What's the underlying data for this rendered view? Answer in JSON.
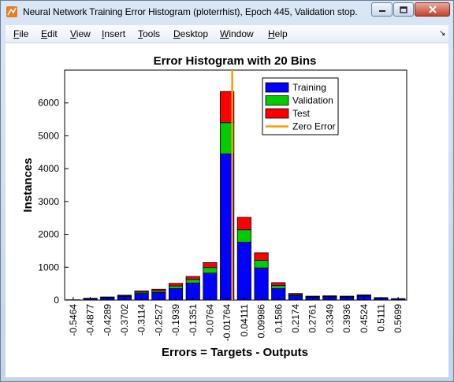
{
  "window": {
    "title": "Neural Network Training Error Histogram (ploterrhist), Epoch 445, Validation stop."
  },
  "menu": {
    "items": [
      {
        "label": "File",
        "key": "F",
        "rest": "ile"
      },
      {
        "label": "Edit",
        "key": "E",
        "rest": "dit"
      },
      {
        "label": "View",
        "key": "V",
        "rest": "iew"
      },
      {
        "label": "Insert",
        "key": "I",
        "rest": "nsert"
      },
      {
        "label": "Tools",
        "key": "T",
        "rest": "ools"
      },
      {
        "label": "Desktop",
        "key": "D",
        "rest": "esktop"
      },
      {
        "label": "Window",
        "key": "W",
        "rest": "indow"
      },
      {
        "label": "Help",
        "key": "H",
        "rest": "elp"
      }
    ]
  },
  "chart_data": {
    "type": "bar",
    "stacked": true,
    "title": "Error Histogram with 20 Bins",
    "xlabel": "Errors = Targets - Outputs",
    "ylabel": "Instances",
    "ylim": [
      0,
      7000
    ],
    "yticks": [
      0,
      1000,
      2000,
      3000,
      4000,
      5000,
      6000
    ],
    "grid": false,
    "legend_position": "top-right",
    "categories": [
      "-0.5464",
      "-0.4877",
      "-0.4289",
      "-0.3702",
      "-0.3114",
      "-0.2527",
      "-0.1939",
      "-0.1351",
      "-0.0764",
      "-0.01764",
      "0.04111",
      "0.09986",
      "0.1586",
      "0.2174",
      "0.2761",
      "0.3349",
      "0.3936",
      "0.4524",
      "0.5111",
      "0.5699"
    ],
    "series": [
      {
        "name": "Training",
        "color": "#0000ff",
        "values": [
          5,
          40,
          70,
          110,
          200,
          230,
          350,
          520,
          820,
          4450,
          1760,
          980,
          350,
          140,
          90,
          100,
          90,
          120,
          55,
          35
        ]
      },
      {
        "name": "Validation",
        "color": "#00cc00",
        "values": [
          1,
          8,
          12,
          20,
          40,
          50,
          80,
          110,
          170,
          950,
          380,
          230,
          90,
          30,
          15,
          15,
          15,
          20,
          10,
          5
        ]
      },
      {
        "name": "Test",
        "color": "#ff0000",
        "values": [
          1,
          8,
          13,
          20,
          40,
          50,
          80,
          90,
          150,
          950,
          380,
          230,
          90,
          30,
          15,
          15,
          15,
          20,
          10,
          5
        ]
      }
    ],
    "zero_error": {
      "name": "Zero Error",
      "color": "#ff9900",
      "x_bin_position": 9.3
    }
  }
}
